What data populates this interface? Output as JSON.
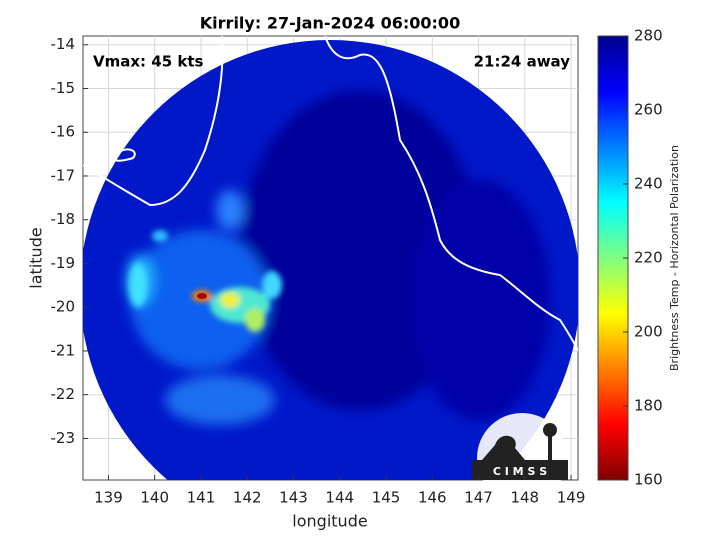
{
  "title": "Kirrily: 27-Jan-2024 06:00:00",
  "vmax_label": "Vmax: 45 kts",
  "away_label": "21:24 away",
  "xlabel": "longitude",
  "ylabel": "latitude",
  "xlim": [
    138.45,
    149.15
  ],
  "ylim": [
    -23.95,
    -13.8
  ],
  "xticks": [
    139,
    140,
    141,
    142,
    143,
    144,
    145,
    146,
    147,
    148,
    149
  ],
  "yticks": [
    -14,
    -15,
    -16,
    -17,
    -18,
    -19,
    -20,
    -21,
    -22,
    -23
  ],
  "grid": true,
  "colorbar": {
    "label": "Brightness Temp - Horizontal Polarization",
    "lim": [
      160,
      280
    ],
    "ticks": [
      160,
      180,
      200,
      220,
      240,
      260,
      280
    ],
    "colormap": "jet"
  },
  "logo": "C I M S S"
}
